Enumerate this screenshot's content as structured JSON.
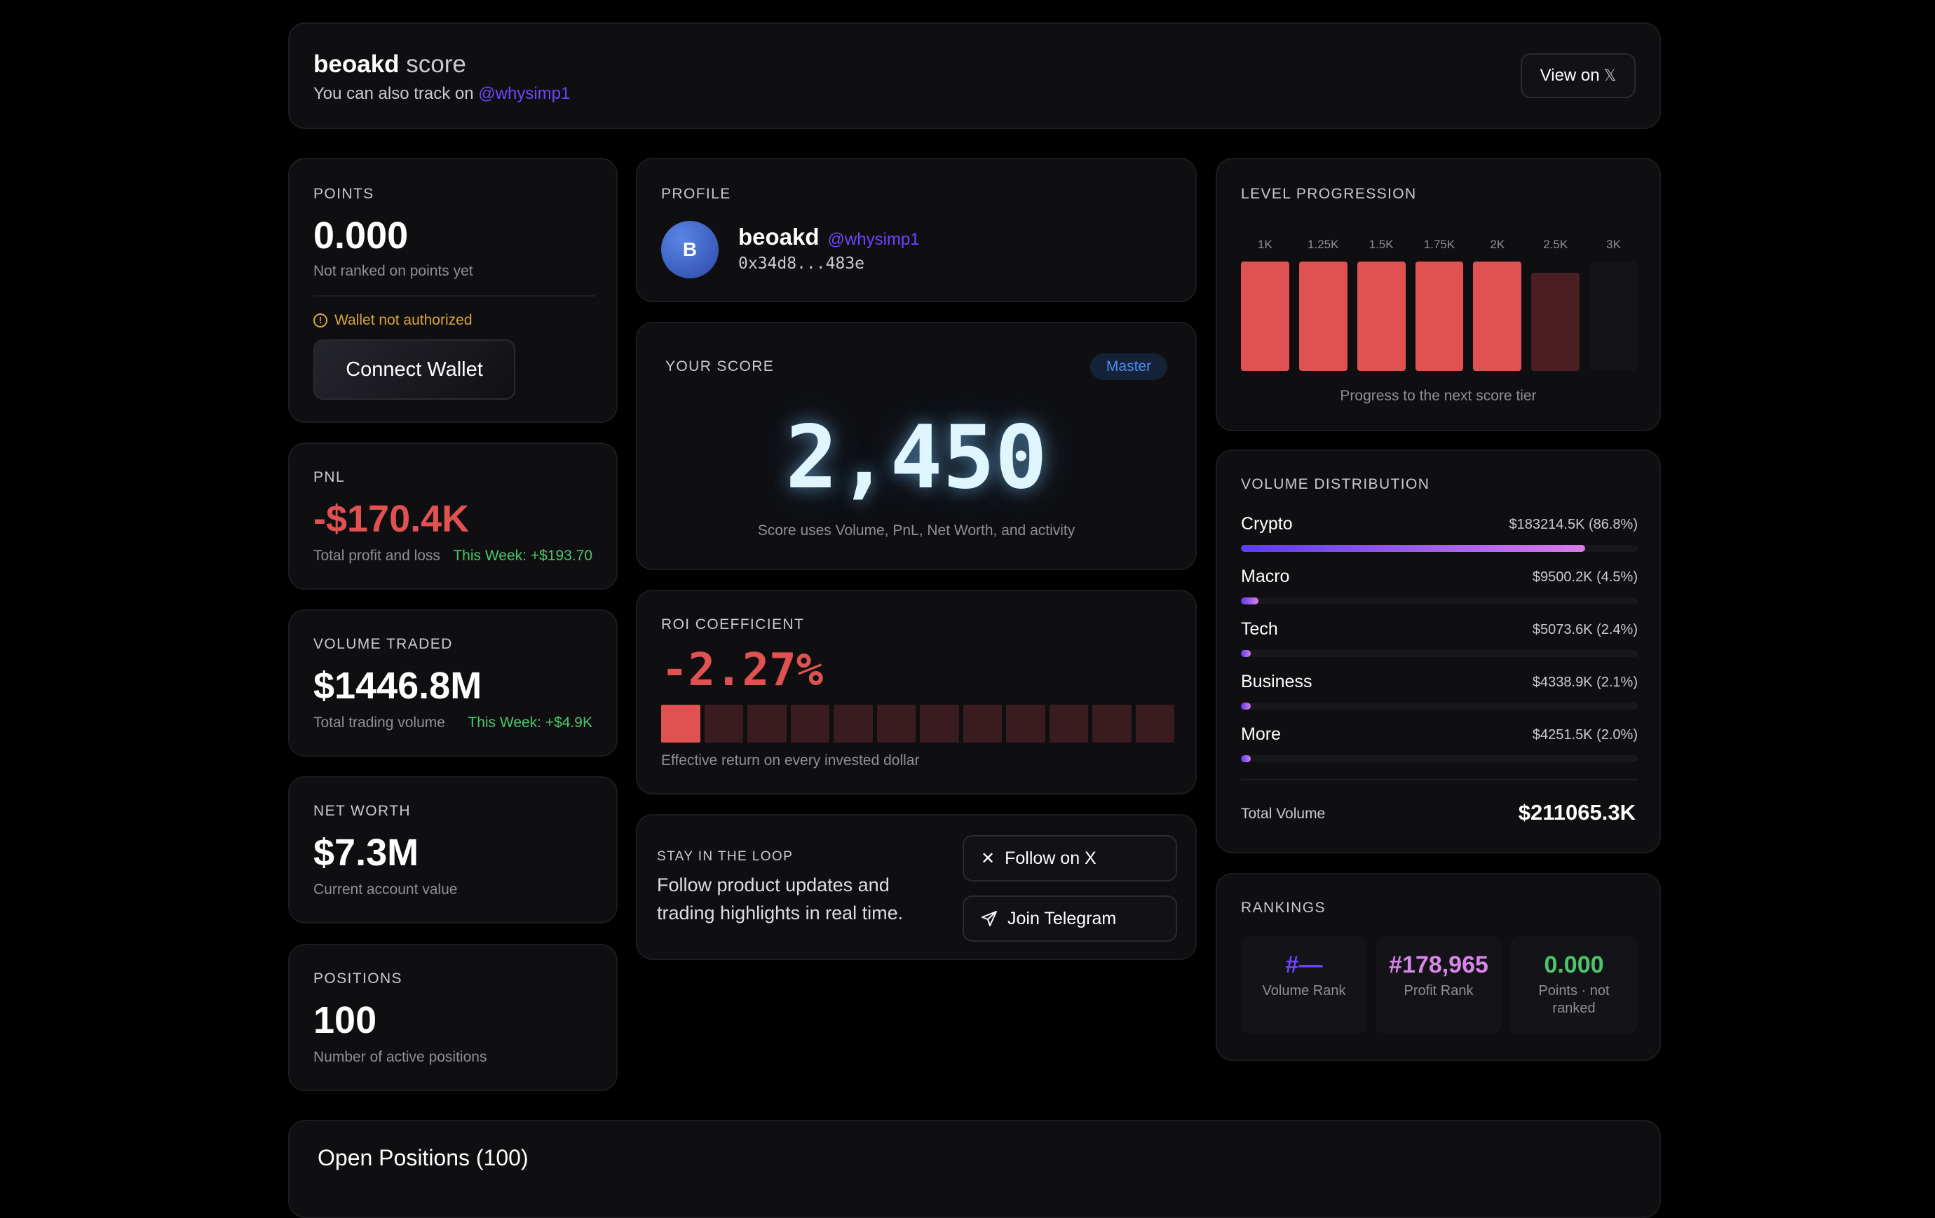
{
  "header": {
    "name": "beoakd",
    "title_suffix": "score",
    "subtitle_prefix": "You can also track on",
    "handle": "@whysimp1",
    "view_button": "View on",
    "x_glyph": "𝕏"
  },
  "points": {
    "label": "POINTS",
    "value": "0.000",
    "caption": "Not ranked on points yet",
    "warning": "Wallet not authorized",
    "connect_button": "Connect Wallet"
  },
  "pnl": {
    "label": "PNL",
    "value": "-$170.4K",
    "caption": "Total profit and loss",
    "week": "This Week: +$193.70"
  },
  "volume": {
    "label": "VOLUME TRADED",
    "value": "$1446.8M",
    "caption": "Total trading volume",
    "week": "This Week: +$4.9K"
  },
  "networth": {
    "label": "NET WORTH",
    "value": "$7.3M",
    "caption": "Current account value"
  },
  "positions": {
    "label": "POSITIONS",
    "value": "100",
    "caption": "Number of active positions"
  },
  "profile": {
    "label": "PROFILE",
    "avatar_letter": "B",
    "name": "beoakd",
    "handle": "@whysimp1",
    "address": "0x34d8...483e"
  },
  "score": {
    "label": "YOUR SCORE",
    "badge": "Master",
    "value": "2,450",
    "caption": "Score uses Volume, PnL, Net Worth, and activity"
  },
  "roi": {
    "label": "ROI COEFFICIENT",
    "value": "-2.27%",
    "caption": "Effective return on every invested dollar",
    "segments_total": 12,
    "segments_filled": 1
  },
  "loop": {
    "label": "STAY IN THE LOOP",
    "text_line1": "Follow product updates and",
    "text_line2": "trading highlights in real time.",
    "follow_button": "Follow on X",
    "telegram_button": "Join Telegram"
  },
  "level": {
    "label": "LEVEL PROGRESSION",
    "ticks": [
      "1K",
      "1.25K",
      "1.5K",
      "1.75K",
      "2K",
      "2.5K",
      "3K"
    ],
    "states": [
      "full",
      "full",
      "full",
      "full",
      "full",
      "partial",
      "empty"
    ],
    "caption": "Progress to the next score tier"
  },
  "distribution": {
    "label": "VOLUME DISTRIBUTION",
    "items": [
      {
        "name": "Crypto",
        "value": "$183214.5K (86.8%)",
        "pct": 86.8
      },
      {
        "name": "Macro",
        "value": "$9500.2K (4.5%)",
        "pct": 4.5
      },
      {
        "name": "Tech",
        "value": "$5073.6K (2.4%)",
        "pct": 2.4
      },
      {
        "name": "Business",
        "value": "$4338.9K (2.1%)",
        "pct": 2.1
      },
      {
        "name": "More",
        "value": "$4251.5K (2.0%)",
        "pct": 2.0
      }
    ],
    "total_label": "Total Volume",
    "total_value": "$211065.3K"
  },
  "rankings": {
    "label": "RANKINGS",
    "volume_rank": "#—",
    "volume_caption": "Volume Rank",
    "profit_rank": "#178,965",
    "profit_caption": "Profit Rank",
    "points_rank": "0.000",
    "points_caption_1": "Points · not",
    "points_caption_2": "ranked"
  },
  "open_positions": {
    "title": "Open Positions (100)"
  },
  "colors": {
    "accent_purple": "#7c4dff",
    "negative": "#e05252",
    "positive": "#4cc66a",
    "score_glow": "#dff6ff"
  }
}
